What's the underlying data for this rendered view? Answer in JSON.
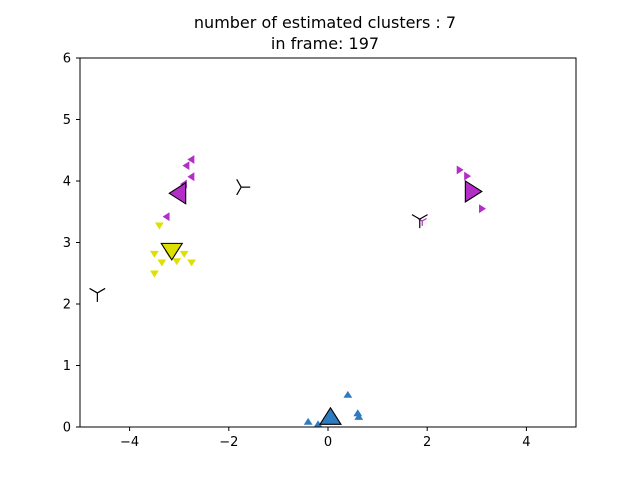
{
  "chart_data": {
    "type": "scatter",
    "title": "number of estimated clusters : 7",
    "subtitle": "in frame: 197",
    "xlabel": "",
    "ylabel": "",
    "xlim": [
      -5,
      5
    ],
    "ylim": [
      0,
      6
    ],
    "x_ticks": [
      -4,
      -2,
      0,
      2,
      4
    ],
    "y_ticks": [
      0,
      1,
      2,
      3,
      4,
      5,
      6
    ],
    "grid": false,
    "legend": "none",
    "groups": [
      {
        "marker": "triangle-left",
        "color": "#b22ec7",
        "points": [
          [
            -2.85,
            4.25
          ],
          [
            -2.75,
            4.35
          ],
          [
            -2.75,
            4.07
          ],
          [
            -2.9,
            3.95
          ],
          [
            -3.25,
            3.42
          ]
        ],
        "center": [
          -3.0,
          3.8
        ]
      },
      {
        "marker": "triangle-down",
        "color": "#dde000",
        "points": [
          [
            -3.4,
            3.28
          ],
          [
            -3.5,
            2.82
          ],
          [
            -3.35,
            2.68
          ],
          [
            -3.2,
            2.82
          ],
          [
            -3.05,
            2.7
          ],
          [
            -2.9,
            2.82
          ],
          [
            -2.75,
            2.68
          ],
          [
            -3.5,
            2.5
          ]
        ],
        "center": [
          -3.15,
          2.88
        ]
      },
      {
        "marker": "tri-right",
        "color": "#000000",
        "points": [],
        "center": [
          -1.75,
          3.9
        ]
      },
      {
        "marker": "tri-down",
        "color": "#000000",
        "points": [],
        "center": [
          -4.65,
          2.18
        ]
      },
      {
        "marker": "triangle-right",
        "color": "#b22ec7",
        "points": [
          [
            2.65,
            4.18
          ],
          [
            2.8,
            4.08
          ],
          [
            3.1,
            3.55
          ]
        ],
        "center": [
          2.9,
          3.83
        ]
      },
      {
        "marker": "tri-down",
        "color": "#b22ec7",
        "points": [
          [
            1.9,
            3.35
          ]
        ],
        "center": [
          1.85,
          3.38
        ]
      },
      {
        "marker": "triangle-up",
        "color": "#2f7bbf",
        "points": [
          [
            -0.4,
            0.08
          ],
          [
            -0.2,
            0.04
          ],
          [
            0.4,
            0.52
          ],
          [
            0.6,
            0.22
          ],
          [
            0.62,
            0.16
          ]
        ],
        "center": [
          0.05,
          0.15
        ]
      }
    ]
  }
}
